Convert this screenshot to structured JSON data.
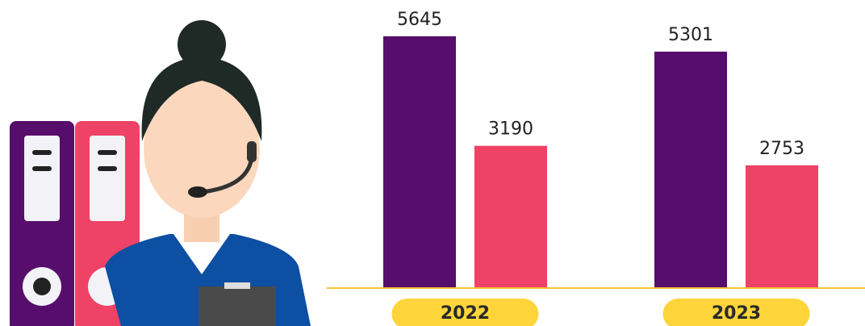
{
  "chart_data": {
    "type": "bar",
    "categories": [
      "2022",
      "2023"
    ],
    "series": [
      {
        "color": "#560d6b",
        "values": [
          5645,
          5301
        ]
      },
      {
        "color": "#ee4266",
        "values": [
          3190,
          2753
        ]
      }
    ],
    "baseline_color": "#f5c431",
    "pill_color": "#fdd53a"
  }
}
